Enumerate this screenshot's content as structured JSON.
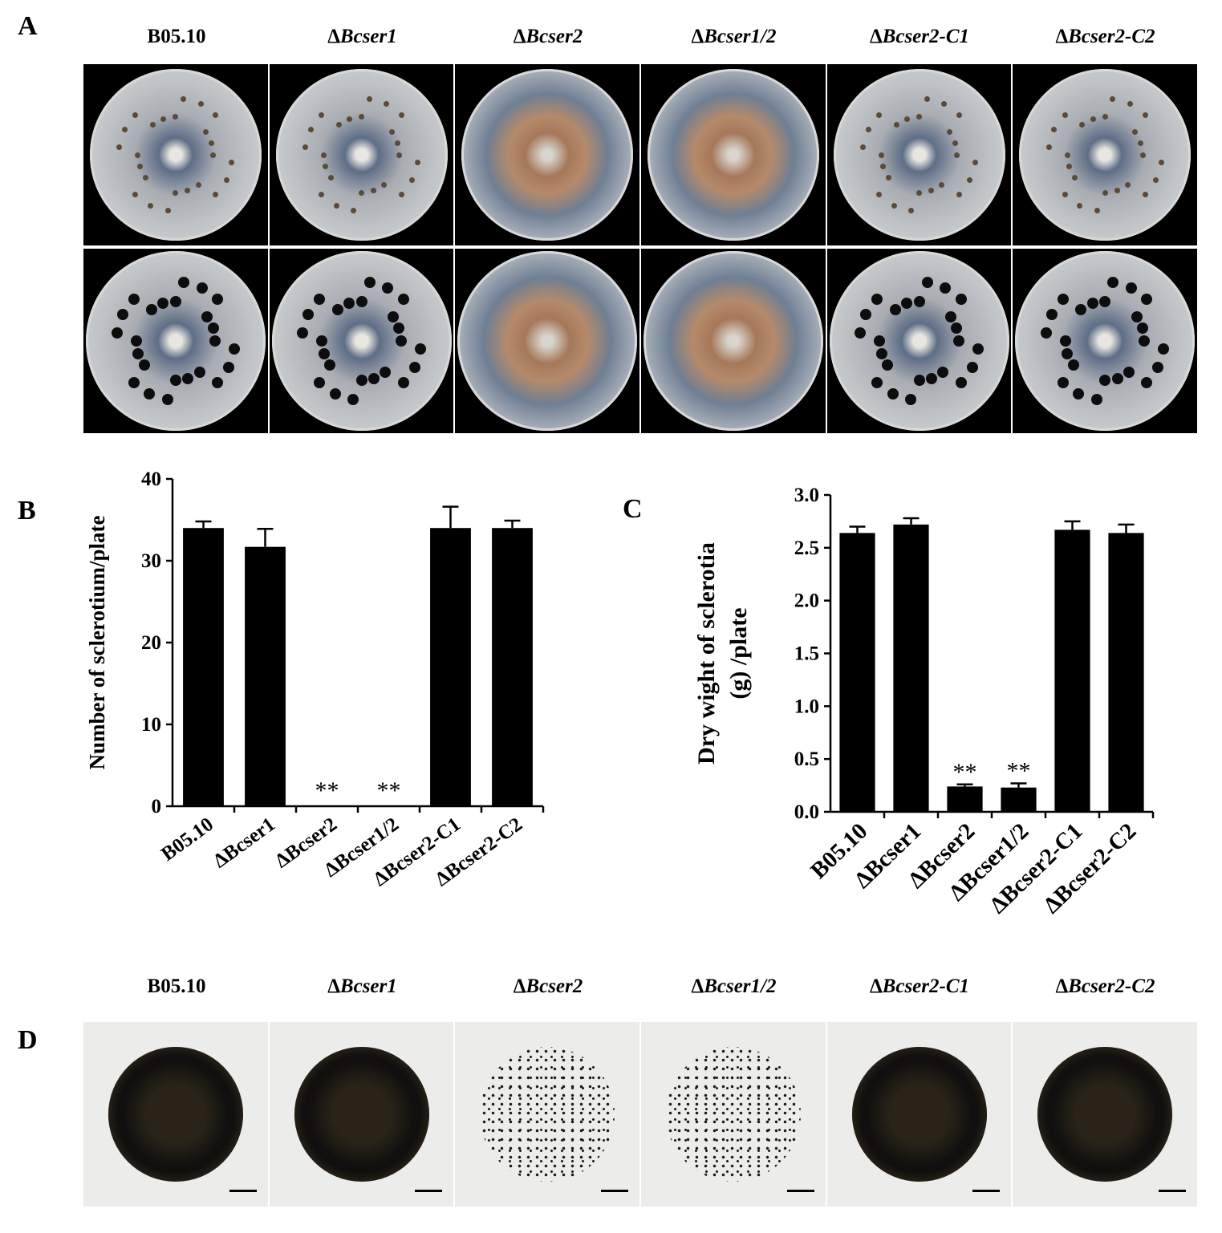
{
  "panels": {
    "a": "A",
    "b": "B",
    "c": "C",
    "d": "D"
  },
  "strains": [
    {
      "delta": "",
      "gene": "B05.10"
    },
    {
      "delta": "Δ",
      "gene": "Bcser1"
    },
    {
      "delta": "Δ",
      "gene": "Bcser2"
    },
    {
      "delta": "Δ",
      "gene": "Bcser1/2"
    },
    {
      "delta": "Δ",
      "gene": "Bcser2-C1"
    },
    {
      "delta": "Δ",
      "gene": "Bcser2-C2"
    }
  ],
  "plate_colors": {
    "wildtype_like": "#a9adb3",
    "mutant_center": "#a6785a",
    "mutant_ring": "#6f7f93",
    "sclerotia": "#0d0d0d",
    "photo_background": "#000000",
    "sclerotia_background": "#ececea"
  },
  "chart_data": [
    {
      "type": "bar",
      "categories": [
        "B05.10",
        "ΔBcser1",
        "ΔBcser2",
        "ΔBcser1/2",
        "ΔBcser2-C1",
        "ΔBcser2-C2"
      ],
      "values": [
        34,
        31.7,
        0,
        0,
        34,
        34
      ],
      "errors": [
        0.8,
        2.2,
        0,
        0,
        2.6,
        0.9
      ],
      "annotations": [
        "",
        "",
        "**",
        "**",
        "",
        ""
      ],
      "ylabel": "Number of sclerotium/plate",
      "ylim": [
        0,
        40
      ],
      "yticks": [
        0,
        10,
        20,
        30,
        40
      ],
      "bar_color": "#000000",
      "grid": false
    },
    {
      "type": "bar",
      "categories": [
        "B05.10",
        "ΔBcser1",
        "ΔBcser2",
        "ΔBcser1/2",
        "ΔBcser2-C1",
        "ΔBcser2-C2"
      ],
      "values": [
        2.64,
        2.72,
        0.24,
        0.23,
        2.67,
        2.64
      ],
      "errors": [
        0.06,
        0.06,
        0.02,
        0.04,
        0.08,
        0.08
      ],
      "annotations": [
        "",
        "",
        "**",
        "**",
        "",
        ""
      ],
      "ylabel_lines": [
        "Dry wight of sclerotia",
        "(g) /plate"
      ],
      "ylim": [
        0,
        3
      ],
      "yticks": [
        "0.0",
        "0.5",
        "1.0",
        "1.5",
        "2.0",
        "2.5",
        "3.0"
      ],
      "bar_color": "#000000",
      "grid": false
    }
  ]
}
